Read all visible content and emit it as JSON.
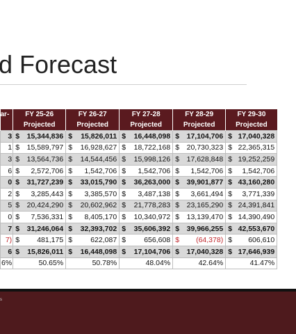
{
  "title": "d Forecast",
  "table": {
    "stub_header": "ar-",
    "columns": [
      {
        "year": "FY 25-26",
        "sub": "Projected"
      },
      {
        "year": "FY 26-27",
        "sub": "Projected"
      },
      {
        "year": "FY 27-28",
        "sub": "Projected"
      },
      {
        "year": "FY 28-29",
        "sub": "Projected"
      },
      {
        "year": "FY 29-30",
        "sub": "Projected"
      }
    ],
    "currency": "$",
    "rows": [
      {
        "stub": "3",
        "bold": true,
        "shaded": true,
        "money": true,
        "cells": [
          "15,344,836",
          "15,826,011",
          "16,448,098",
          "17,104,706",
          "17,040,328"
        ]
      },
      {
        "stub": "1",
        "bold": false,
        "shaded": false,
        "money": true,
        "cells": [
          "15,589,797",
          "16,928,627",
          "18,722,168",
          "20,730,323",
          "22,365,315"
        ]
      },
      {
        "stub": "3",
        "bold": false,
        "shaded": true,
        "money": true,
        "cells": [
          "13,564,736",
          "14,544,456",
          "15,998,126",
          "17,628,848",
          "19,252,259"
        ]
      },
      {
        "stub": "6",
        "bold": false,
        "shaded": false,
        "money": true,
        "cells": [
          "2,572,706",
          "1,542,706",
          "1,542,706",
          "1,542,706",
          "1,542,706"
        ]
      },
      {
        "stub": "0",
        "bold": true,
        "shaded": true,
        "money": true,
        "cells": [
          "31,727,239",
          "33,015,790",
          "36,263,000",
          "39,901,877",
          "43,160,280"
        ]
      },
      {
        "stub": "2",
        "bold": false,
        "shaded": false,
        "money": true,
        "cells": [
          "3,285,443",
          "3,385,570",
          "3,487,138",
          "3,661,494",
          "3,771,339"
        ]
      },
      {
        "stub": "5",
        "bold": false,
        "shaded": true,
        "money": true,
        "cells": [
          "20,424,290",
          "20,602,962",
          "21,778,283",
          "23,165,290",
          "24,391,841"
        ]
      },
      {
        "stub": "0",
        "bold": false,
        "shaded": false,
        "money": true,
        "cells": [
          "7,536,331",
          "8,405,170",
          "10,340,972",
          "13,139,470",
          "14,390,490"
        ]
      },
      {
        "stub": "7",
        "bold": true,
        "shaded": true,
        "money": true,
        "cells": [
          "31,246,064",
          "32,393,702",
          "35,606,392",
          "39,966,255",
          "42,553,670"
        ]
      },
      {
        "stub": "7)",
        "bold": false,
        "shaded": false,
        "money": true,
        "cells": [
          "481,175",
          "622,087",
          "656,608",
          "(64,378)",
          "606,610"
        ]
      },
      {
        "stub": "6",
        "bold": true,
        "shaded": true,
        "money": true,
        "cells": [
          "15,826,011",
          "16,448,098",
          "17,104,706",
          "17,040,328",
          "17,646,939"
        ]
      },
      {
        "stub": "6%",
        "bold": false,
        "shaded": false,
        "money": false,
        "cells": [
          "50.65%",
          "50.78%",
          "48.04%",
          "42.64%",
          "41.47%"
        ]
      }
    ]
  },
  "footer": {
    "text": "s"
  }
}
